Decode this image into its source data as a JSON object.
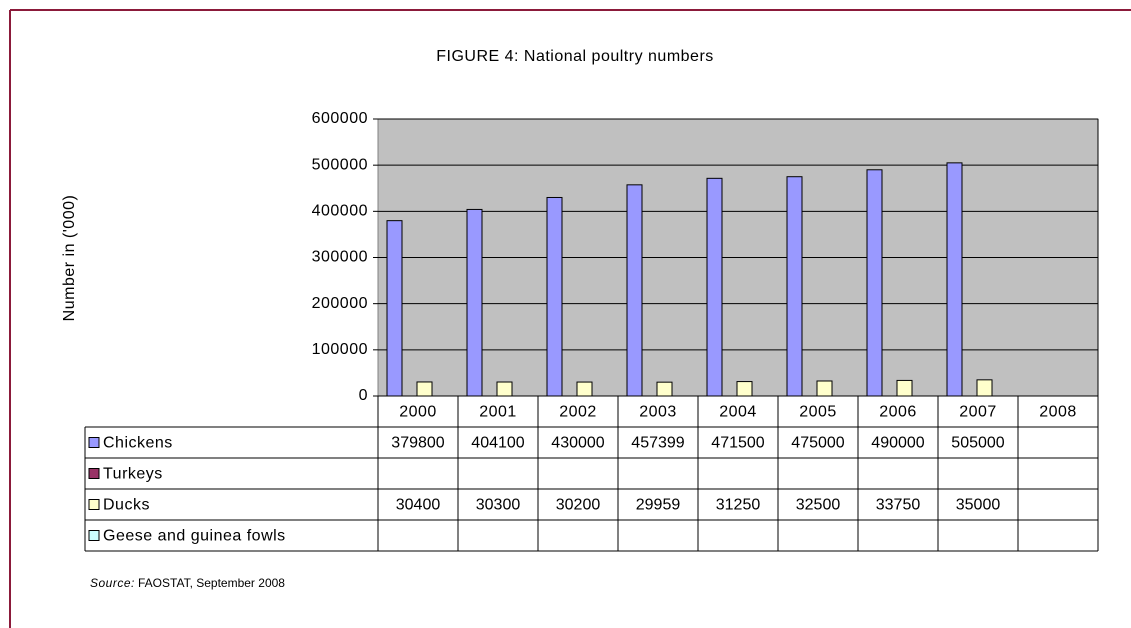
{
  "chart_data": {
    "type": "bar",
    "title": "FIGURE 4: National poultry numbers",
    "y_label": "Number in ('000)",
    "categories": [
      "2000",
      "2001",
      "2002",
      "2003",
      "2004",
      "2005",
      "2006",
      "2007",
      "2008"
    ],
    "series": [
      {
        "name": "Chickens",
        "color": "#9999ff",
        "values": [
          379800,
          404100,
          430000,
          457399,
          471500,
          475000,
          490000,
          505000,
          null
        ]
      },
      {
        "name": "Turkeys",
        "color": "#993366",
        "values": [
          null,
          null,
          null,
          null,
          null,
          null,
          null,
          null,
          null
        ]
      },
      {
        "name": "Ducks",
        "color": "#ffffcc",
        "values": [
          30400,
          30300,
          30200,
          29959,
          31250,
          32500,
          33750,
          35000,
          null
        ]
      },
      {
        "name": "Geese and guinea fowls",
        "color": "#ccffff",
        "values": [
          null,
          null,
          null,
          null,
          null,
          null,
          null,
          null,
          null
        ]
      }
    ],
    "ylim": [
      0,
      600000
    ],
    "yticks": [
      0,
      100000,
      200000,
      300000,
      400000,
      500000,
      600000
    ],
    "grid": true,
    "source_label": "Source:",
    "source": "FAOSTAT, September 2008"
  }
}
